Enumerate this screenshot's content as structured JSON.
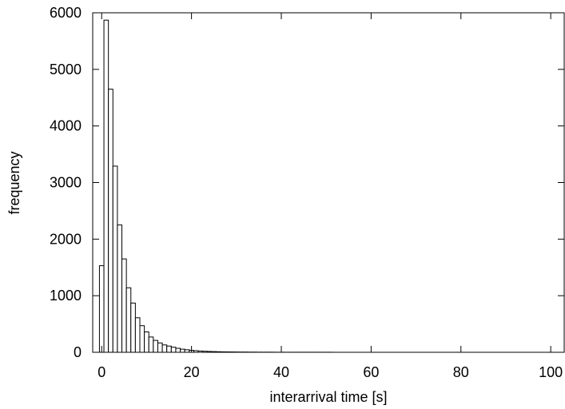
{
  "chart_data": {
    "type": "bar",
    "title": "",
    "xlabel": "interarrival time [s]",
    "ylabel": "frequency",
    "xlim": [
      -2,
      103
    ],
    "ylim": [
      0,
      6000
    ],
    "xticks": [
      0,
      20,
      40,
      60,
      80,
      100
    ],
    "yticks": [
      0,
      1000,
      2000,
      3000,
      4000,
      5000,
      6000
    ],
    "bin_width": 1,
    "grid": false,
    "bar_fill": "#ffffff",
    "bar_stroke": "#000000",
    "bin_centers": [
      0,
      1,
      2,
      3,
      4,
      5,
      6,
      7,
      8,
      9,
      10,
      11,
      12,
      13,
      14,
      15,
      16,
      17,
      18,
      19,
      20,
      21,
      22,
      23,
      24,
      25,
      26,
      27,
      28,
      29,
      30,
      31,
      32,
      33,
      34,
      35,
      36,
      37,
      38,
      39,
      40,
      41,
      42,
      43,
      44,
      45,
      46,
      47,
      48,
      49,
      50,
      51,
      52,
      53,
      54,
      55,
      56,
      57,
      58,
      59,
      60,
      61,
      62,
      63,
      64,
      65,
      66,
      67,
      68,
      69,
      70,
      71,
      72,
      73,
      74,
      75,
      76,
      77,
      78,
      79,
      80,
      81,
      82,
      83,
      84,
      85,
      86,
      87,
      88,
      89,
      90,
      91,
      92,
      93,
      94,
      95,
      96,
      97,
      98,
      99,
      100
    ],
    "values": [
      1530,
      5870,
      4650,
      3290,
      2250,
      1650,
      1140,
      870,
      610,
      470,
      360,
      270,
      210,
      165,
      130,
      110,
      90,
      70,
      55,
      45,
      35,
      28,
      22,
      18,
      15,
      12,
      10,
      8,
      7,
      6,
      5,
      4,
      4,
      3,
      3,
      2,
      2,
      2,
      2,
      1,
      1,
      1,
      1,
      1,
      1,
      1,
      1,
      1,
      1,
      1,
      1,
      1,
      0,
      0,
      0,
      0,
      0,
      0,
      0,
      0,
      0,
      0,
      0,
      0,
      0,
      0,
      0,
      0,
      0,
      0,
      0,
      0,
      0,
      0,
      0,
      0,
      0,
      0,
      0,
      0,
      0,
      0,
      0,
      0,
      0,
      0,
      0,
      0,
      0,
      0,
      0,
      0,
      0,
      0,
      0,
      0,
      0,
      0,
      0,
      0,
      0
    ]
  }
}
